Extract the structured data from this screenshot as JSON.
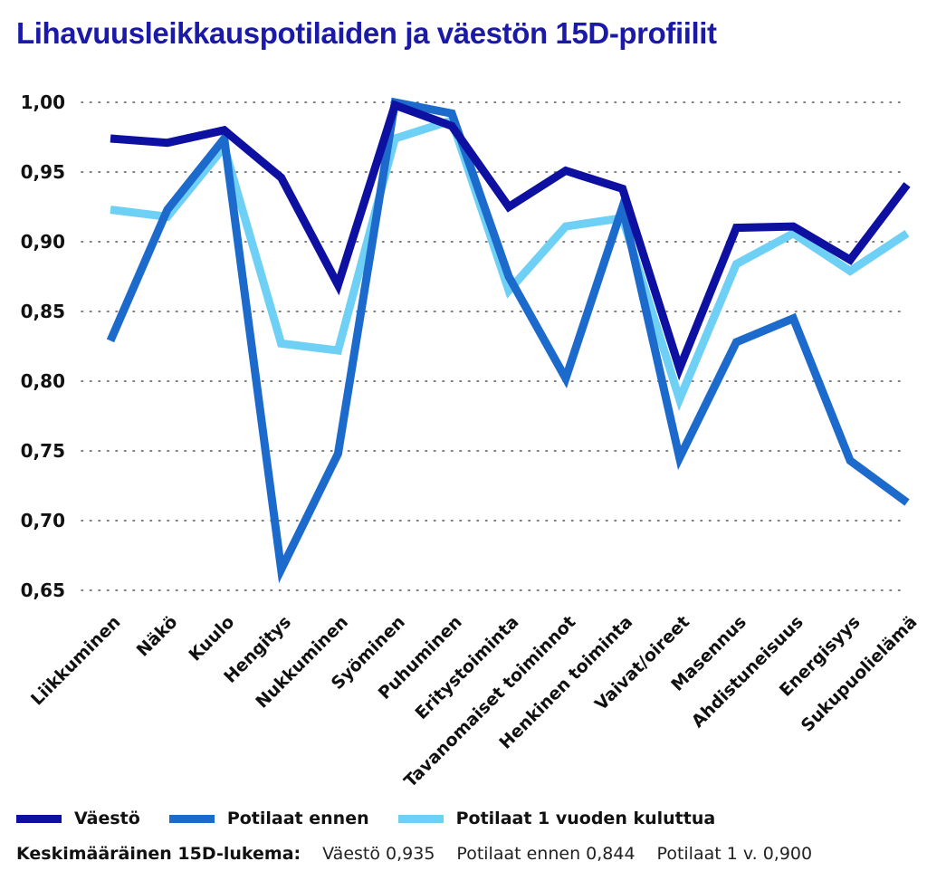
{
  "chart_data": {
    "type": "line",
    "title": "Lihavuusleikkauspotilaiden ja väestön 15D-profiilit",
    "xlabel": "",
    "ylabel": "",
    "ylim": [
      0.65,
      1.0
    ],
    "yticks": [
      1.0,
      0.95,
      0.9,
      0.85,
      0.8,
      0.75,
      0.7,
      0.65
    ],
    "ytick_labels": [
      "1,00",
      "0,95",
      "0,90",
      "0,85",
      "0,80",
      "0,75",
      "0,70",
      "0,65"
    ],
    "grid": "horizontal dotted",
    "legend_placement": "bottom",
    "categories": [
      "Liikkuminen",
      "Näkö",
      "Kuulo",
      "Hengitys",
      "Nukkuminen",
      "Syöminen",
      "Puhuminen",
      "Eritystoiminta",
      "Tavanomaiset toiminnot",
      "Henkinen toiminta",
      "Vaivat/oireet",
      "Masennus",
      "Ahdistuneisuus",
      "Energisyys",
      "Sukupuolielämä"
    ],
    "series": [
      {
        "name": "Potilaat 1 vuoden kuluttua",
        "color": "#6fd0f6",
        "values": [
          0.923,
          0.918,
          0.968,
          0.827,
          0.822,
          0.974,
          0.987,
          0.865,
          0.911,
          0.917,
          0.787,
          0.884,
          0.906,
          0.879,
          0.906
        ]
      },
      {
        "name": "Potilaat ennen",
        "color": "#1d6acd",
        "values": [
          0.829,
          0.923,
          0.974,
          0.665,
          0.748,
          1.0,
          0.992,
          0.875,
          0.802,
          0.925,
          0.745,
          0.828,
          0.845,
          0.743,
          0.713
        ]
      },
      {
        "name": "Väestö",
        "color": "#0d10a0",
        "values": [
          0.974,
          0.971,
          0.98,
          0.946,
          0.869,
          0.998,
          0.983,
          0.925,
          0.951,
          0.938,
          0.809,
          0.91,
          0.911,
          0.887,
          0.941
        ]
      }
    ]
  },
  "legend": [
    {
      "label": "Väestö",
      "color": "#0d10a0"
    },
    {
      "label": "Potilaat ennen",
      "color": "#1d6acd"
    },
    {
      "label": "Potilaat 1 vuoden kuluttua",
      "color": "#6fd0f6"
    }
  ],
  "averages": {
    "label": "Keskimääräinen 15D-lukema:",
    "vaesto": "Väestö 0,935",
    "ennen": "Potilaat ennen 0,844",
    "jalkeen": "Potilaat 1 v. 0,900"
  }
}
